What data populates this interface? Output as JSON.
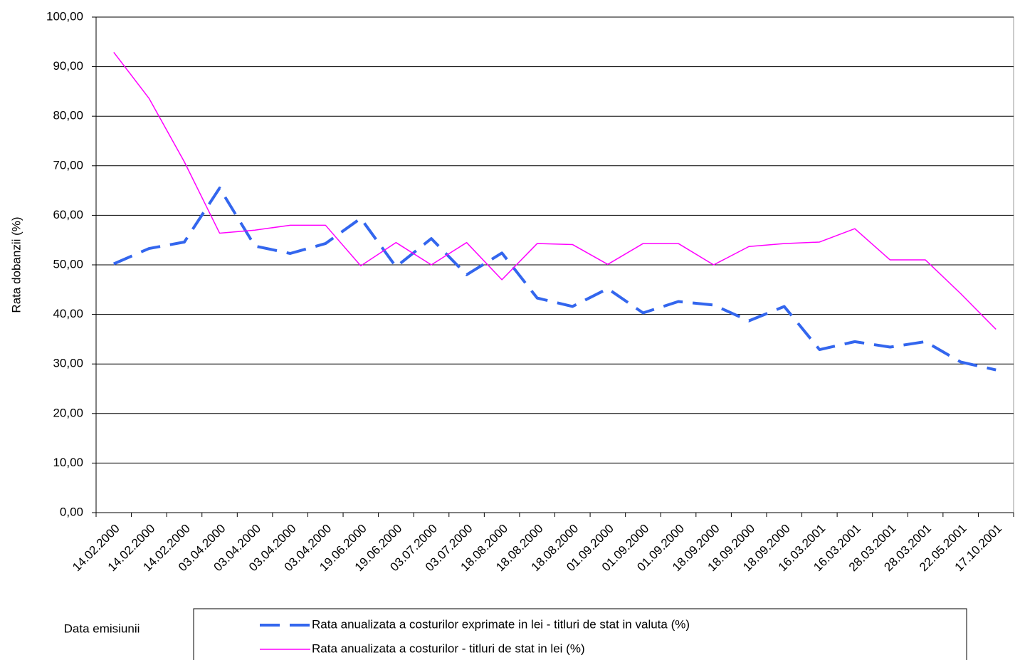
{
  "chart_data": {
    "type": "line",
    "y_label": "Rata dobanzii (%)",
    "x_label": "Data emisiunii",
    "categories": [
      "14.02.2000",
      "14.02.2000",
      "14.02.2000",
      "03.04.2000",
      "03.04.2000",
      "03.04.2000",
      "03.04.2000",
      "19.06.2000",
      "19.06.2000",
      "03.07.2000",
      "03.07.2000",
      "18.08.2000",
      "18.08.2000",
      "18.08.2000",
      "01.09.2000",
      "01.09.2000",
      "01.09.2000",
      "18.09.2000",
      "18.09.2000",
      "18.09.2000",
      "16.03.2001",
      "16.03.2001",
      "28.03.2001",
      "28.03.2001",
      "22.05.2001",
      "17.10.2001"
    ],
    "series": [
      {
        "name": "Rata anualizata a costurilor exprimate in lei - titluri de stat in valuta (%)",
        "color": "#3366ee",
        "dashed": true,
        "values": [
          50.2,
          53.3,
          54.6,
          65.5,
          53.8,
          52.3,
          54.3,
          59.4,
          49.6,
          55.3,
          48.0,
          52.4,
          43.3,
          41.6,
          45.2,
          40.3,
          42.6,
          41.9,
          38.7,
          41.6,
          32.9,
          34.5,
          33.4,
          34.5,
          30.4,
          28.8
        ]
      },
      {
        "name": "Rata anualizata a costurilor - titluri de stat in lei (%)",
        "color": "#ff00ff",
        "dashed": false,
        "values": [
          92.9,
          83.6,
          70.8,
          56.4,
          57.0,
          58.0,
          58.0,
          49.8,
          54.5,
          50.0,
          54.5,
          47.0,
          54.3,
          54.1,
          50.1,
          54.3,
          54.3,
          50.0,
          53.7,
          54.3,
          54.6,
          57.3,
          51.0,
          51.0,
          44.2,
          37.0
        ]
      }
    ],
    "ylim": [
      0,
      100
    ],
    "yticks": [
      {
        "value": 0,
        "label": "0,00"
      },
      {
        "value": 10,
        "label": "10,00"
      },
      {
        "value": 20,
        "label": "20,00"
      },
      {
        "value": 30,
        "label": "30,00"
      },
      {
        "value": 40,
        "label": "40,00"
      },
      {
        "value": 50,
        "label": "50,00"
      },
      {
        "value": 60,
        "label": "60,00"
      },
      {
        "value": 70,
        "label": "70,00"
      },
      {
        "value": 80,
        "label": "80,00"
      },
      {
        "value": 90,
        "label": "90,00"
      },
      {
        "value": 100,
        "label": "100,00"
      }
    ],
    "grid": true
  }
}
